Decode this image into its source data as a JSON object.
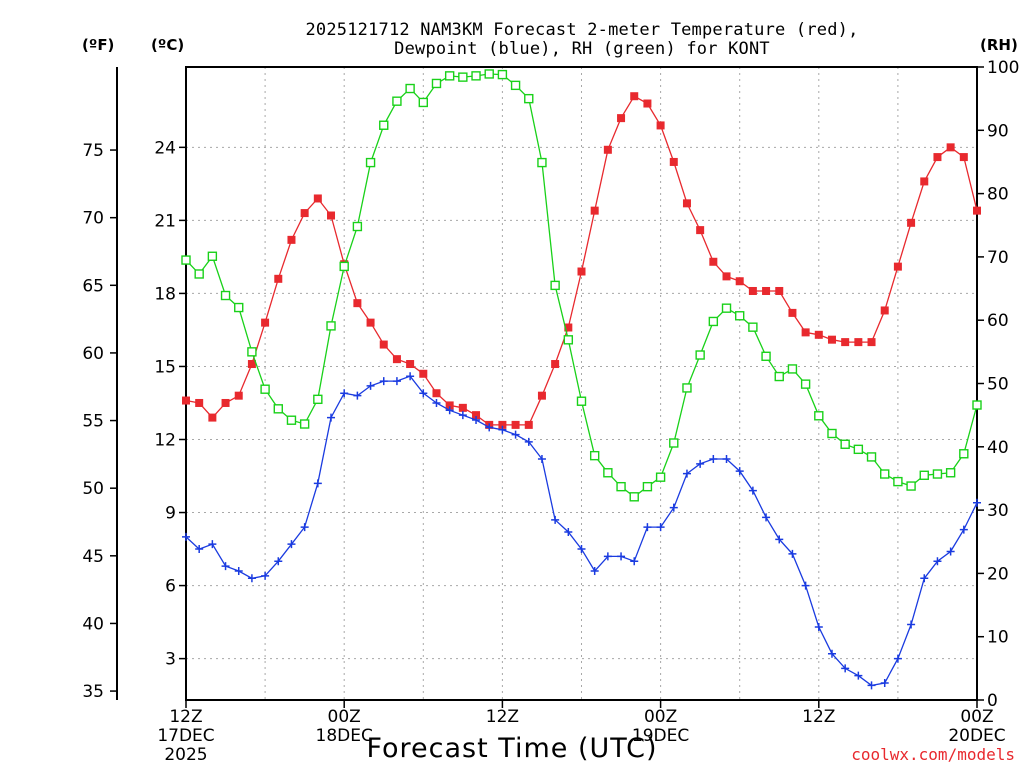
{
  "header": {
    "title_line1": "2025121712 NAM3KM Forecast 2-meter Temperature (red),",
    "title_line2": "Dewpoint (blue), RH (green) for KONT"
  },
  "footer": {
    "credit": "coolwx.com/models"
  },
  "colors": {
    "temperature": "#e8292e",
    "dewpoint": "#1a3be0",
    "rh": "#19d119",
    "grid": "#a8a8a8"
  },
  "chart_data": {
    "type": "line",
    "title": "2025121712 NAM3KM Forecast 2-meter Temperature (red), Dewpoint (blue), RH (green) for KONT",
    "xlabel": "Forecast Time (UTC)",
    "x_hours": [
      0,
      1,
      2,
      3,
      4,
      5,
      6,
      7,
      8,
      9,
      10,
      11,
      12,
      13,
      14,
      15,
      16,
      17,
      18,
      19,
      20,
      21,
      22,
      23,
      24,
      25,
      26,
      27,
      28,
      29,
      30,
      31,
      32,
      33,
      34,
      35,
      36,
      37,
      38,
      39,
      40,
      41,
      42,
      43,
      44,
      45,
      46,
      47,
      48,
      49,
      50,
      51,
      52,
      53,
      54,
      55,
      56,
      57,
      58,
      59,
      60
    ],
    "x_ticks": [
      {
        "hour": 0,
        "lines": [
          "12Z",
          "17DEC",
          "2025"
        ]
      },
      {
        "hour": 12,
        "lines": [
          "00Z",
          "18DEC"
        ]
      },
      {
        "hour": 24,
        "lines": [
          "12Z"
        ]
      },
      {
        "hour": 36,
        "lines": [
          "00Z",
          "19DEC"
        ]
      },
      {
        "hour": 48,
        "lines": [
          "12Z"
        ]
      },
      {
        "hour": 60,
        "lines": [
          "00Z",
          "20DEC"
        ]
      }
    ],
    "axes": {
      "fahrenheit": {
        "label": "(ºF)",
        "ticks": [
          35,
          40,
          45,
          50,
          55,
          60,
          65,
          70,
          75
        ]
      },
      "celsius": {
        "label": "(ºC)",
        "range": [
          1.3,
          27.3
        ],
        "ticks": [
          3,
          6,
          9,
          12,
          15,
          18,
          21,
          24
        ]
      },
      "rh": {
        "label": "(RH)",
        "range": [
          0,
          100
        ],
        "ticks": [
          0,
          10,
          20,
          30,
          40,
          50,
          60,
          70,
          80,
          90,
          100
        ]
      }
    },
    "series": [
      {
        "name": "Temperature",
        "unit": "C",
        "color": "#e8292e",
        "marker": "filled-square",
        "values": [
          13.6,
          13.5,
          12.9,
          13.5,
          13.8,
          15.1,
          16.8,
          18.6,
          20.2,
          21.3,
          21.9,
          21.2,
          19.2,
          17.6,
          16.8,
          15.9,
          15.3,
          15.1,
          14.7,
          13.9,
          13.4,
          13.3,
          13.0,
          12.6,
          12.6,
          12.6,
          12.6,
          13.8,
          15.1,
          16.6,
          18.9,
          21.4,
          23.9,
          25.2,
          26.1,
          25.8,
          24.9,
          23.4,
          21.7,
          20.6,
          19.3,
          18.7,
          18.5,
          18.1,
          18.1,
          18.1,
          17.2,
          16.4,
          16.3,
          16.1,
          16.0,
          16.0,
          16.0,
          17.3,
          19.1,
          20.9,
          22.6,
          23.6,
          24.0,
          23.6,
          21.4
        ]
      },
      {
        "name": "Dewpoint",
        "unit": "C",
        "color": "#1a3be0",
        "marker": "plus",
        "values": [
          8.0,
          7.5,
          7.7,
          6.8,
          6.6,
          6.3,
          6.4,
          7.0,
          7.7,
          8.4,
          10.2,
          12.9,
          13.9,
          13.8,
          14.2,
          14.4,
          14.4,
          14.6,
          13.9,
          13.5,
          13.2,
          13.0,
          12.8,
          12.5,
          12.4,
          12.2,
          11.9,
          11.2,
          8.7,
          8.2,
          7.5,
          6.6,
          7.2,
          7.2,
          7.0,
          8.4,
          8.4,
          9.2,
          10.6,
          11.0,
          11.2,
          11.2,
          10.7,
          9.9,
          8.8,
          7.9,
          7.3,
          6.0,
          4.3,
          3.2,
          2.6,
          2.3,
          1.9,
          2.0,
          3.0,
          4.4,
          6.3,
          7.0,
          7.4,
          8.3,
          9.4
        ]
      },
      {
        "name": "RH",
        "unit": "%",
        "color": "#19d119",
        "marker": "open-square",
        "values": [
          69.5,
          67.3,
          70.1,
          63.9,
          62.0,
          55.0,
          49.1,
          46.0,
          44.2,
          43.6,
          47.5,
          59.1,
          68.5,
          74.8,
          84.9,
          90.8,
          94.6,
          96.6,
          94.4,
          97.4,
          98.6,
          98.4,
          98.6,
          98.9,
          98.8,
          97.1,
          95.0,
          84.9,
          65.5,
          56.9,
          47.2,
          38.6,
          35.9,
          33.7,
          32.1,
          33.7,
          35.2,
          40.6,
          49.3,
          54.5,
          59.8,
          61.9,
          60.7,
          58.9,
          54.3,
          51.1,
          52.3,
          49.9,
          44.9,
          42.1,
          40.4,
          39.6,
          38.4,
          35.7,
          34.5,
          33.8,
          35.5,
          35.7,
          35.9,
          38.9,
          46.6
        ]
      }
    ]
  }
}
